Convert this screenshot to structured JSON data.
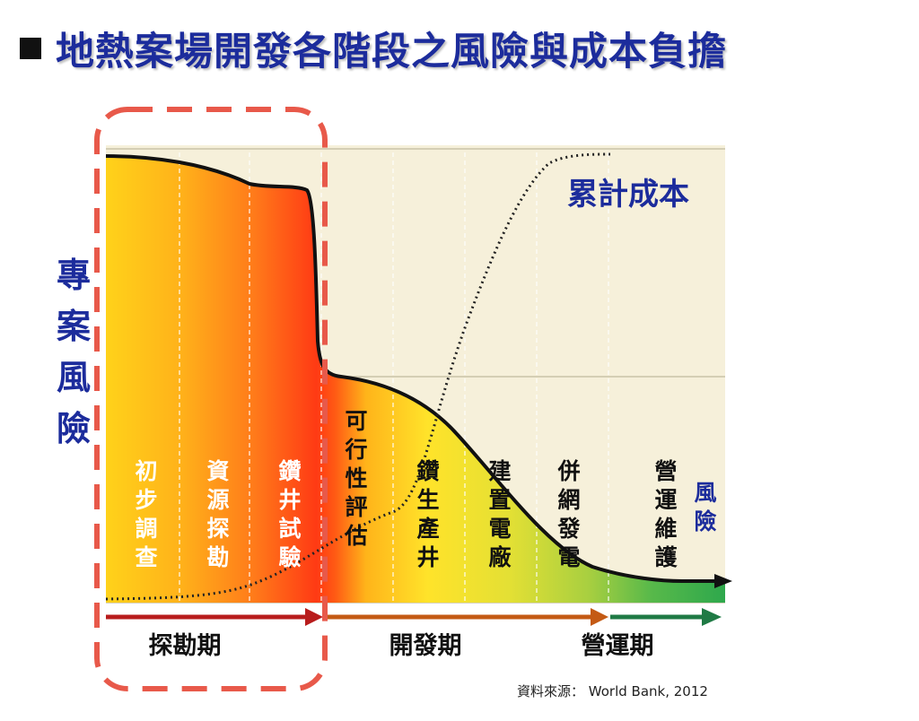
{
  "title": "地熱案場開發各階段之風險與成本負擔",
  "y_axis_label": "專案風險",
  "cost_curve_label": "累計成本",
  "risk_end_label": "風險",
  "stages": [
    {
      "label": "初步調查",
      "color": "#ffffff"
    },
    {
      "label": "資源探勘",
      "color": "#ffffff"
    },
    {
      "label": "鑽井試驗",
      "color": "#ffffff"
    },
    {
      "label": "可行性評估",
      "color": "#111111"
    },
    {
      "label": "鑽生產井",
      "color": "#111111"
    },
    {
      "label": "建置電廠",
      "color": "#111111"
    },
    {
      "label": "併網發電",
      "color": "#111111"
    },
    {
      "label": "營運維護",
      "color": "#111111"
    }
  ],
  "phases": [
    {
      "label": "探勘期",
      "color": "#b81c1c"
    },
    {
      "label": "開發期",
      "color": "#c45a14"
    },
    {
      "label": "營運期",
      "color": "#1f7a45"
    }
  ],
  "source": "資料來源： World Bank, 2012",
  "colors": {
    "title": "#1c2c9c",
    "highlight_box": "#e8594a",
    "chart_background": "#f6f0da"
  }
}
